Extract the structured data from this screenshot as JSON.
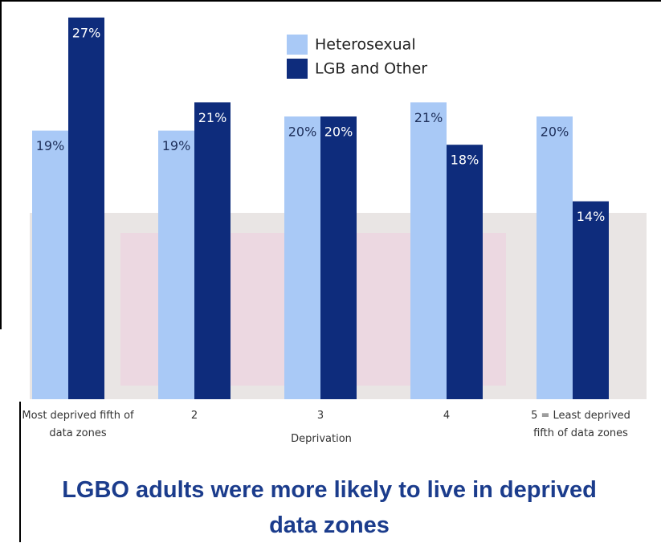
{
  "chart_data": {
    "type": "bar",
    "title": "LGBO adults were more likely to live in deprived data zones",
    "x_label": "Deprivation",
    "categories": [
      "Most deprived fifth of data zones",
      "2",
      "3",
      "4",
      "5 = Least deprived fifth of data zones"
    ],
    "series": [
      {
        "name": "Heterosexual",
        "color": "#a9c9f6",
        "values": [
          19,
          19,
          20,
          21,
          20
        ],
        "value_labels": [
          "19%",
          "19%",
          "20%",
          "21%",
          "20%"
        ]
      },
      {
        "name": "LGB and Other",
        "color": "#0e2c7c",
        "values": [
          27,
          21,
          20,
          18,
          14
        ],
        "value_labels": [
          "27%",
          "21%",
          "20%",
          "18%",
          "14%"
        ]
      }
    ]
  }
}
